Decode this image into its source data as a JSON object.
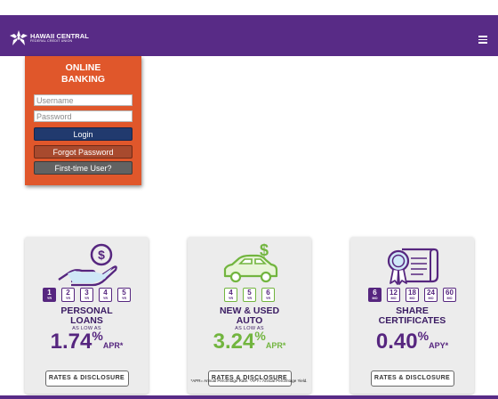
{
  "header": {
    "logo_line1": "HAWAII CENTRAL",
    "logo_line2": "FEDERAL CREDIT UNION",
    "menu_icon": "hamburger-icon",
    "bar_color": "#582b86"
  },
  "login": {
    "title_line1": "ONLINE",
    "title_line2": "BANKING",
    "username_placeholder": "Username",
    "password_placeholder": "Password",
    "login_label": "Login",
    "forgot_label": "Forgot Password",
    "first_time_label": "First-time User?",
    "card_color": "#e0572b"
  },
  "cards": [
    {
      "icon": "hand-dollar-icon",
      "terms": [
        {
          "n": "1",
          "u": "YR",
          "active": true
        },
        {
          "n": "2",
          "u": "YR"
        },
        {
          "n": "3",
          "u": "YR"
        },
        {
          "n": "4",
          "u": "YR"
        },
        {
          "n": "5",
          "u": "YR"
        }
      ],
      "title_line1": "PERSONAL",
      "title_line2": "LOANS",
      "as_low": "AS LOW AS",
      "rate": "1.74",
      "pct": "%",
      "suffix": "APR*",
      "rate_color": "#56267f",
      "button": "RATES & DISCLOSURE"
    },
    {
      "icon": "car-dollar-icon",
      "terms": [
        {
          "n": "4",
          "u": "YR"
        },
        {
          "n": "5",
          "u": "YR"
        },
        {
          "n": "6",
          "u": "YR"
        }
      ],
      "title_line1": "NEW & USED",
      "title_line2": "AUTO",
      "as_low": "AS LOW AS",
      "rate": "3.24",
      "pct": "%",
      "suffix": "APR*",
      "rate_color": "#72b53f",
      "button": "RATES & DISCLOSURE"
    },
    {
      "icon": "certificate-icon",
      "terms": [
        {
          "n": "6",
          "u": "MO",
          "active": true
        },
        {
          "n": "12",
          "u": "MO"
        },
        {
          "n": "18",
          "u": "MO"
        },
        {
          "n": "24",
          "u": "MO"
        },
        {
          "n": "60",
          "u": "MO"
        }
      ],
      "title_line1": "SHARE",
      "title_line2": "CERTIFICATES",
      "as_low": "",
      "rate": "0.40",
      "pct": "%",
      "suffix": "APY*",
      "rate_color": "#56267f",
      "button": "RATES & DISCLOSURE"
    }
  ],
  "footnote": "*APR= Annual Percentage Rate. *APY= Annual Percentage Yield."
}
